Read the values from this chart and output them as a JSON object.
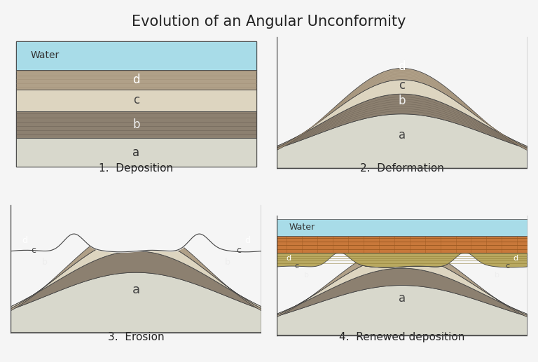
{
  "title": "Evolution of an Angular Unconformity",
  "title_fontsize": 15,
  "background_color": "#f5f5f5",
  "colors": {
    "water": "#a8dce8",
    "layer_a": "#d8d8cc",
    "layer_b": "#8c8070",
    "layer_c": "#ddd5c0",
    "layer_d": "#b0a088",
    "brick": "#c8783a",
    "new_sed": "#b8a860",
    "border": "#444444"
  },
  "labels": {
    "panel1": "1.  Deposition",
    "panel2": "2.  Deformation",
    "panel3": "3.  Erosion",
    "panel4": "4.  Renewed deposition"
  }
}
